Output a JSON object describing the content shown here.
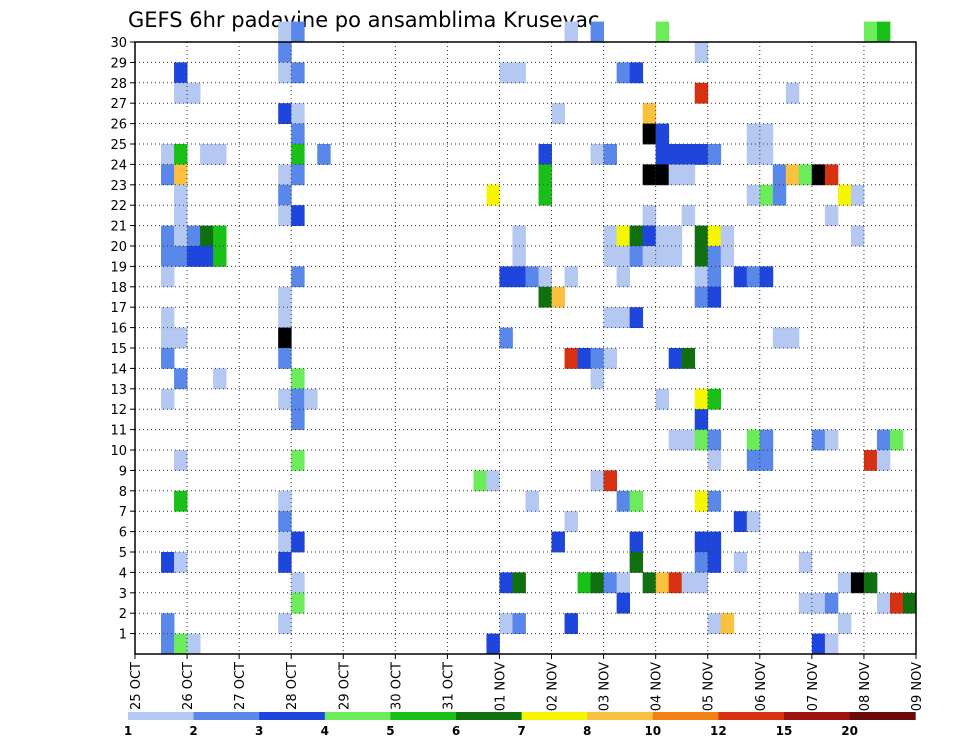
{
  "chart_data": {
    "type": "heatmap",
    "title": "GEFS 6hr padavine po ansamblima Krusevac",
    "xlabel": "",
    "ylabel": "",
    "x_ticks": [
      "25 OCT",
      "26 OCT",
      "27 OCT",
      "28 OCT",
      "29 OCT",
      "30 OCT",
      "31 OCT",
      "01 NOV",
      "02 NOV",
      "03 NOV",
      "04 NOV",
      "05 NOV",
      "06 NOV",
      "07 NOV",
      "08 NOV",
      "09 NOV"
    ],
    "xlim": [
      0,
      60
    ],
    "y_ticks": [
      "1",
      "2",
      "3",
      "4",
      "5",
      "6",
      "7",
      "8",
      "9",
      "10",
      "11",
      "12",
      "13",
      "14",
      "15",
      "16",
      "17",
      "18",
      "19",
      "20",
      "21",
      "22",
      "23",
      "24",
      "25",
      "26",
      "27",
      "28",
      "29",
      "30"
    ],
    "ylim": [
      0,
      30
    ],
    "grid": true,
    "x_unit_note": "x index = 6-hour step starting 25 OCT 00z",
    "colorbar": {
      "labels": [
        "1",
        "2",
        "3",
        "4",
        "5",
        "6",
        "7",
        "8",
        "10",
        "12",
        "15",
        "20"
      ],
      "colors": [
        "#b4c8f2",
        "#5a88ea",
        "#1e46dc",
        "#6cec5a",
        "#18c018",
        "#107010",
        "#f6f600",
        "#fac040",
        "#f48018",
        "#d63212",
        "#a01212",
        "#6a0a0a"
      ]
    },
    "cells": [
      [
        11,
        30,
        1
      ],
      [
        12,
        30,
        2
      ],
      [
        33,
        30,
        1
      ],
      [
        35,
        30,
        2
      ],
      [
        40,
        30,
        4
      ],
      [
        56,
        30,
        4
      ],
      [
        57,
        30,
        5
      ],
      [
        11,
        29,
        2
      ],
      [
        43,
        29,
        1
      ],
      [
        3,
        28,
        3
      ],
      [
        11,
        28,
        1
      ],
      [
        12,
        28,
        2
      ],
      [
        28,
        28,
        1
      ],
      [
        29,
        28,
        1
      ],
      [
        37,
        28,
        2
      ],
      [
        38,
        28,
        3
      ],
      [
        3,
        27,
        1
      ],
      [
        4,
        27,
        1
      ],
      [
        43,
        27,
        10
      ],
      [
        50,
        27,
        1
      ],
      [
        11,
        26,
        3
      ],
      [
        12,
        26,
        1
      ],
      [
        32,
        26,
        1
      ],
      [
        39,
        26,
        8
      ],
      [
        12,
        25,
        2
      ],
      [
        39,
        25,
        15
      ],
      [
        40,
        25,
        3
      ],
      [
        47,
        25,
        1
      ],
      [
        48,
        25,
        1
      ],
      [
        2,
        24,
        1
      ],
      [
        3,
        24,
        5
      ],
      [
        5,
        24,
        1
      ],
      [
        6,
        24,
        1
      ],
      [
        12,
        24,
        5
      ],
      [
        14,
        24,
        2
      ],
      [
        31,
        24,
        3
      ],
      [
        35,
        24,
        1
      ],
      [
        36,
        24,
        2
      ],
      [
        40,
        24,
        3
      ],
      [
        41,
        24,
        3
      ],
      [
        42,
        24,
        3
      ],
      [
        43,
        24,
        3
      ],
      [
        44,
        24,
        2
      ],
      [
        47,
        24,
        1
      ],
      [
        48,
        24,
        1
      ],
      [
        2,
        23,
        2
      ],
      [
        3,
        23,
        8
      ],
      [
        11,
        23,
        1
      ],
      [
        12,
        23,
        2
      ],
      [
        31,
        23,
        5
      ],
      [
        39,
        23,
        20
      ],
      [
        40,
        23,
        20
      ],
      [
        41,
        23,
        1
      ],
      [
        42,
        23,
        1
      ],
      [
        49,
        23,
        2
      ],
      [
        50,
        23,
        8
      ],
      [
        51,
        23,
        4
      ],
      [
        52,
        23,
        15
      ],
      [
        53,
        23,
        10
      ],
      [
        3,
        22,
        1
      ],
      [
        11,
        22,
        2
      ],
      [
        27,
        22,
        7
      ],
      [
        31,
        22,
        5
      ],
      [
        47,
        22,
        1
      ],
      [
        48,
        22,
        4
      ],
      [
        49,
        22,
        2
      ],
      [
        54,
        22,
        7
      ],
      [
        55,
        22,
        1
      ],
      [
        3,
        21,
        1
      ],
      [
        11,
        21,
        1
      ],
      [
        12,
        21,
        3
      ],
      [
        39,
        21,
        1
      ],
      [
        42,
        21,
        1
      ],
      [
        53,
        21,
        1
      ],
      [
        2,
        20,
        2
      ],
      [
        3,
        20,
        1
      ],
      [
        4,
        20,
        2
      ],
      [
        5,
        20,
        6
      ],
      [
        6,
        20,
        5
      ],
      [
        29,
        20,
        1
      ],
      [
        36,
        20,
        1
      ],
      [
        37,
        20,
        7
      ],
      [
        38,
        20,
        6
      ],
      [
        39,
        20,
        3
      ],
      [
        40,
        20,
        1
      ],
      [
        41,
        20,
        1
      ],
      [
        43,
        20,
        6
      ],
      [
        44,
        20,
        7
      ],
      [
        45,
        20,
        1
      ],
      [
        55,
        20,
        1
      ],
      [
        2,
        19,
        2
      ],
      [
        3,
        19,
        2
      ],
      [
        4,
        19,
        3
      ],
      [
        5,
        19,
        3
      ],
      [
        6,
        19,
        5
      ],
      [
        29,
        19,
        1
      ],
      [
        36,
        19,
        1
      ],
      [
        37,
        19,
        1
      ],
      [
        38,
        19,
        2
      ],
      [
        39,
        19,
        1
      ],
      [
        40,
        19,
        1
      ],
      [
        41,
        19,
        1
      ],
      [
        43,
        19,
        6
      ],
      [
        44,
        19,
        2
      ],
      [
        45,
        19,
        1
      ],
      [
        2,
        18,
        1
      ],
      [
        12,
        18,
        2
      ],
      [
        28,
        18,
        3
      ],
      [
        29,
        18,
        3
      ],
      [
        30,
        18,
        2
      ],
      [
        31,
        18,
        1
      ],
      [
        33,
        18,
        1
      ],
      [
        37,
        18,
        1
      ],
      [
        43,
        18,
        1
      ],
      [
        44,
        18,
        2
      ],
      [
        46,
        18,
        3
      ],
      [
        47,
        18,
        2
      ],
      [
        48,
        18,
        3
      ],
      [
        11,
        17,
        1
      ],
      [
        31,
        17,
        6
      ],
      [
        32,
        17,
        8
      ],
      [
        43,
        17,
        2
      ],
      [
        44,
        17,
        3
      ],
      [
        2,
        16,
        1
      ],
      [
        11,
        16,
        1
      ],
      [
        36,
        16,
        1
      ],
      [
        37,
        16,
        1
      ],
      [
        38,
        16,
        3
      ],
      [
        2,
        15,
        1
      ],
      [
        3,
        15,
        1
      ],
      [
        11,
        15,
        15
      ],
      [
        28,
        15,
        2
      ],
      [
        49,
        15,
        1
      ],
      [
        50,
        15,
        1
      ],
      [
        2,
        14,
        2
      ],
      [
        11,
        14,
        2
      ],
      [
        33,
        14,
        10
      ],
      [
        34,
        14,
        3
      ],
      [
        35,
        14,
        2
      ],
      [
        36,
        14,
        1
      ],
      [
        41,
        14,
        3
      ],
      [
        42,
        14,
        6
      ],
      [
        3,
        13,
        2
      ],
      [
        6,
        13,
        1
      ],
      [
        12,
        13,
        4
      ],
      [
        35,
        13,
        1
      ],
      [
        2,
        12,
        1
      ],
      [
        11,
        12,
        1
      ],
      [
        12,
        12,
        2
      ],
      [
        13,
        12,
        1
      ],
      [
        40,
        12,
        1
      ],
      [
        43,
        12,
        7
      ],
      [
        44,
        12,
        5
      ],
      [
        12,
        11,
        2
      ],
      [
        43,
        11,
        3
      ],
      [
        41,
        10,
        1
      ],
      [
        42,
        10,
        1
      ],
      [
        43,
        10,
        4
      ],
      [
        44,
        10,
        2
      ],
      [
        47,
        10,
        4
      ],
      [
        48,
        10,
        2
      ],
      [
        52,
        10,
        2
      ],
      [
        53,
        10,
        1
      ],
      [
        57,
        10,
        2
      ],
      [
        58,
        10,
        4
      ],
      [
        3,
        9,
        1
      ],
      [
        12,
        9,
        4
      ],
      [
        44,
        9,
        1
      ],
      [
        47,
        9,
        2
      ],
      [
        48,
        9,
        2
      ],
      [
        56,
        9,
        10
      ],
      [
        57,
        9,
        1
      ],
      [
        26,
        8,
        4
      ],
      [
        27,
        8,
        1
      ],
      [
        35,
        8,
        1
      ],
      [
        36,
        8,
        10
      ],
      [
        3,
        7,
        5
      ],
      [
        11,
        7,
        1
      ],
      [
        30,
        7,
        1
      ],
      [
        37,
        7,
        2
      ],
      [
        38,
        7,
        4
      ],
      [
        43,
        7,
        7
      ],
      [
        44,
        7,
        2
      ],
      [
        11,
        6,
        2
      ],
      [
        33,
        6,
        1
      ],
      [
        46,
        6,
        3
      ],
      [
        47,
        6,
        1
      ],
      [
        11,
        5,
        1
      ],
      [
        12,
        5,
        3
      ],
      [
        32,
        5,
        3
      ],
      [
        38,
        5,
        3
      ],
      [
        43,
        5,
        3
      ],
      [
        44,
        5,
        3
      ],
      [
        2,
        4,
        3
      ],
      [
        3,
        4,
        1
      ],
      [
        11,
        4,
        3
      ],
      [
        38,
        4,
        6
      ],
      [
        43,
        4,
        2
      ],
      [
        44,
        4,
        3
      ],
      [
        46,
        4,
        1
      ],
      [
        51,
        4,
        1
      ],
      [
        12,
        3,
        1
      ],
      [
        28,
        3,
        3
      ],
      [
        29,
        3,
        6
      ],
      [
        34,
        3,
        5
      ],
      [
        35,
        3,
        6
      ],
      [
        36,
        3,
        2
      ],
      [
        37,
        3,
        1
      ],
      [
        39,
        3,
        6
      ],
      [
        40,
        3,
        8
      ],
      [
        41,
        3,
        10
      ],
      [
        42,
        3,
        1
      ],
      [
        43,
        3,
        1
      ],
      [
        54,
        3,
        1
      ],
      [
        55,
        3,
        15
      ],
      [
        56,
        3,
        6
      ],
      [
        12,
        2,
        4
      ],
      [
        37,
        2,
        3
      ],
      [
        51,
        2,
        1
      ],
      [
        52,
        2,
        1
      ],
      [
        53,
        2,
        2
      ],
      [
        57,
        2,
        1
      ],
      [
        58,
        2,
        10
      ],
      [
        59,
        2,
        6
      ],
      [
        2,
        1,
        2
      ],
      [
        11,
        1,
        1
      ],
      [
        28,
        1,
        1
      ],
      [
        29,
        1,
        2
      ],
      [
        33,
        1,
        3
      ],
      [
        44,
        1,
        1
      ],
      [
        45,
        1,
        8
      ],
      [
        54,
        1,
        1
      ],
      [
        2,
        0,
        2
      ],
      [
        3,
        0,
        4
      ],
      [
        4,
        0,
        1
      ],
      [
        27,
        0,
        3
      ],
      [
        52,
        0,
        3
      ],
      [
        53,
        0,
        1
      ]
    ]
  }
}
